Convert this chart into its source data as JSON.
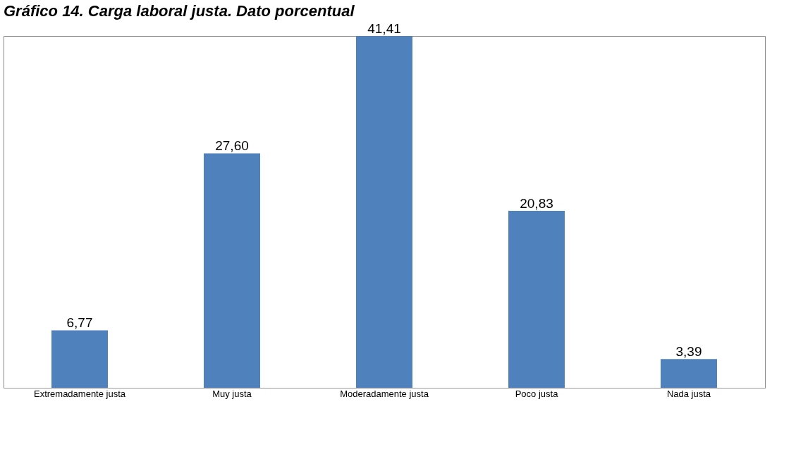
{
  "chart_data": {
    "type": "bar",
    "title": "Gráfico 14. Carga laboral justa. Dato porcentual",
    "categories": [
      "Extremadamente justa",
      "Muy justa",
      "Moderadamente justa",
      "Poco justa",
      "Nada justa"
    ],
    "values": [
      6.77,
      27.6,
      41.41,
      20.83,
      3.39
    ],
    "value_labels": [
      "6,77",
      "27,60",
      "41,41",
      "20,83",
      "3,39"
    ],
    "color": "#4f81bd",
    "grid": false
  }
}
